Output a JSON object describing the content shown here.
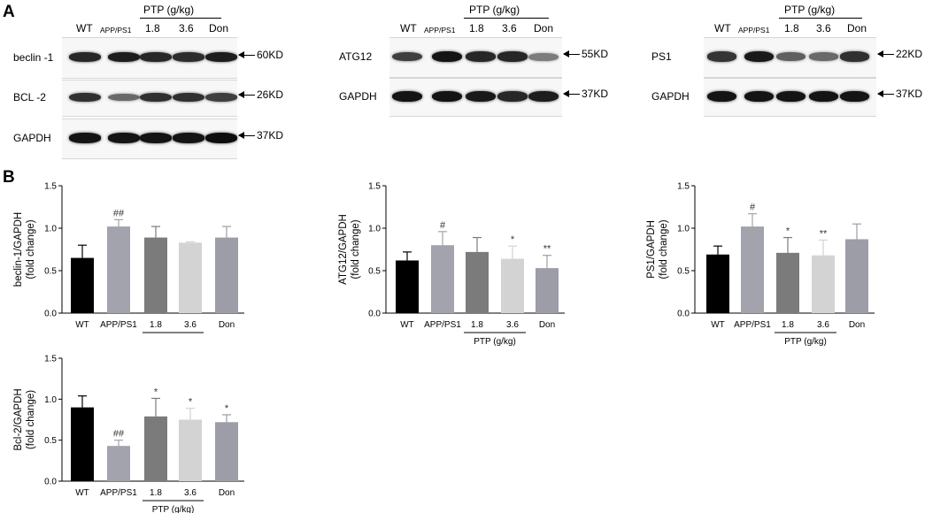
{
  "panel_a_label": "A",
  "panel_b_label": "B",
  "lanes": [
    "WT",
    "APP/PS1",
    "1.8",
    "3.6",
    "Don"
  ],
  "ptp_header": "PTP (g/kg)",
  "blots": [
    {
      "rows": [
        {
          "label": "beclin -1",
          "kd": "60KD",
          "intensity": [
            0.85,
            0.9,
            0.85,
            0.82,
            0.9
          ]
        },
        {
          "label": "BCL -2",
          "kd": "26KD",
          "intensity": [
            0.8,
            0.5,
            0.8,
            0.8,
            0.72
          ]
        },
        {
          "label": "GAPDH",
          "kd": "37KD",
          "intensity": [
            0.95,
            0.95,
            0.95,
            0.95,
            0.98
          ]
        }
      ]
    },
    {
      "rows": [
        {
          "label": "ATG12",
          "kd": "55KD",
          "intensity": [
            0.72,
            0.95,
            0.85,
            0.85,
            0.4
          ]
        },
        {
          "label": "GAPDH",
          "kd": "37KD",
          "intensity": [
            0.95,
            0.95,
            0.92,
            0.85,
            0.9
          ]
        }
      ]
    },
    {
      "rows": [
        {
          "label": "PS1",
          "kd": "22KD",
          "intensity": [
            0.78,
            0.92,
            0.55,
            0.5,
            0.8
          ]
        },
        {
          "label": "GAPDH",
          "kd": "37KD",
          "intensity": [
            0.95,
            0.95,
            0.95,
            0.95,
            0.95
          ]
        }
      ]
    }
  ],
  "chart_data": [
    {
      "type": "bar",
      "ylabel": [
        "beclin-1/GAPDH",
        "(fold change)"
      ],
      "categories": [
        "WT",
        "APP/PS1",
        "1.8",
        "3.6",
        "Don"
      ],
      "group_label": "PTP (g/kg)",
      "values": [
        0.65,
        1.02,
        0.89,
        0.83,
        0.89
      ],
      "errors": [
        0.15,
        0.08,
        0.13,
        0.01,
        0.13
      ],
      "significance": [
        "",
        "##",
        "",
        "",
        ""
      ],
      "ylim": [
        0,
        1.5
      ],
      "yticks": [
        "0.0",
        "0.5",
        "1.0",
        "1.5"
      ]
    },
    {
      "type": "bar",
      "ylabel": [
        "ATG12/GAPDH",
        "(fold change)"
      ],
      "categories": [
        "WT",
        "APP/PS1",
        "1.8",
        "3.6",
        "Don"
      ],
      "group_label": "PTP (g/kg)",
      "values": [
        0.62,
        0.8,
        0.72,
        0.64,
        0.53
      ],
      "errors": [
        0.1,
        0.16,
        0.17,
        0.15,
        0.15
      ],
      "significance": [
        "",
        "#",
        "",
        "*",
        "**"
      ],
      "ylim": [
        0,
        1.5
      ],
      "yticks": [
        "0.0",
        "0.5",
        "1.0",
        "1.5"
      ]
    },
    {
      "type": "bar",
      "ylabel": [
        "PS1/GAPDH",
        "(fold change)"
      ],
      "categories": [
        "WT",
        "APP/PS1",
        "1.8",
        "3.6",
        "Don"
      ],
      "group_label": "PTP (g/kg)",
      "values": [
        0.69,
        1.02,
        0.71,
        0.68,
        0.87
      ],
      "errors": [
        0.1,
        0.15,
        0.18,
        0.18,
        0.18
      ],
      "significance": [
        "",
        "#",
        "*",
        "**",
        ""
      ],
      "ylim": [
        0,
        1.5
      ],
      "yticks": [
        "0.0",
        "0.5",
        "1.0",
        "1.5"
      ]
    },
    {
      "type": "bar",
      "ylabel": [
        "Bcl-2/GAPDH",
        "(fold change)"
      ],
      "categories": [
        "WT",
        "APP/PS1",
        "1.8",
        "3.6",
        "Don"
      ],
      "group_label": "PTP (g/kg)",
      "values": [
        0.9,
        0.43,
        0.79,
        0.75,
        0.72
      ],
      "errors": [
        0.14,
        0.07,
        0.22,
        0.14,
        0.09
      ],
      "significance": [
        "",
        "##",
        "*",
        "*",
        "*"
      ],
      "ylim": [
        0,
        1.5
      ],
      "yticks": [
        "0.0",
        "0.5",
        "1.0",
        "1.5"
      ]
    }
  ],
  "bar_colors": [
    "#000000",
    "#a3a3ad",
    "#7b7b7b",
    "#d3d3d3",
    "#9d9da8"
  ]
}
